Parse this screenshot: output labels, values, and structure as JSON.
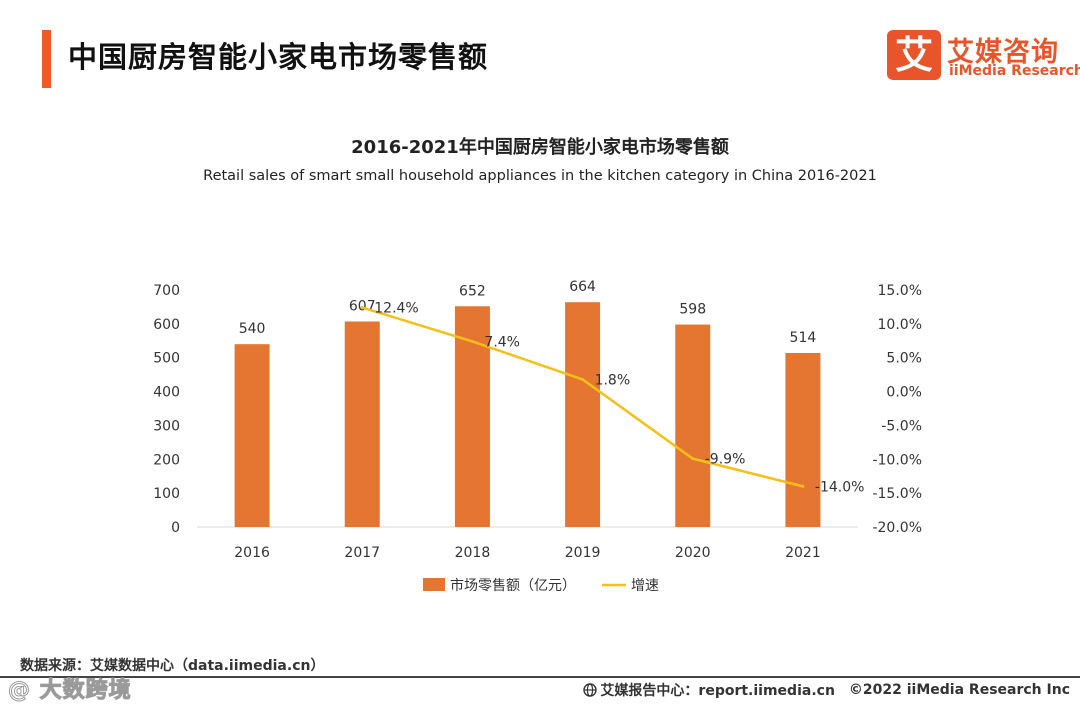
{
  "header": {
    "title": "中国厨房智能小家电市场零售额",
    "logo_badge": "艾",
    "logo_cn": "艾媒咨询",
    "logo_en": "iiMedia Research"
  },
  "chart_data": {
    "type": "bar",
    "title": "2016-2021年中国厨房智能小家电市场零售额",
    "subtitle": "Retail sales of smart small household appliances in the kitchen category in China 2016-2021",
    "categories": [
      "2016",
      "2017",
      "2018",
      "2019",
      "2020",
      "2021"
    ],
    "series": [
      {
        "name": "市场零售额（亿元）",
        "type": "bar",
        "axis": "left",
        "color": "#e57632",
        "values": [
          540,
          607,
          652,
          664,
          598,
          514
        ],
        "labels": [
          "540",
          "607",
          "652",
          "664",
          "598",
          "514"
        ]
      },
      {
        "name": "增速",
        "type": "line",
        "axis": "right",
        "color": "#f5bf1a",
        "values": [
          null,
          12.4,
          7.4,
          1.8,
          -9.9,
          -14.0
        ],
        "labels": [
          "",
          "12.4%",
          "7.4%",
          "1.8%",
          "-9.9%",
          "-14.0%"
        ]
      }
    ],
    "y_left": {
      "min": 0,
      "max": 700,
      "ticks": [
        "0",
        "100",
        "200",
        "300",
        "400",
        "500",
        "600",
        "700"
      ]
    },
    "y_right": {
      "min": -20,
      "max": 15,
      "ticks": [
        "-20.0%",
        "-15.0%",
        "-10.0%",
        "-5.0%",
        "0.0%",
        "5.0%",
        "10.0%",
        "15.0%"
      ]
    },
    "legend_position": "bottom",
    "grid": false
  },
  "footer": {
    "source": "数据来源：艾媒数据中心（data.iimedia.cn）",
    "watermark": "@ 大数跨境",
    "report": "艾媒报告中心：report.iimedia.cn",
    "copyright": "©2022  iiMedia Research  Inc"
  }
}
